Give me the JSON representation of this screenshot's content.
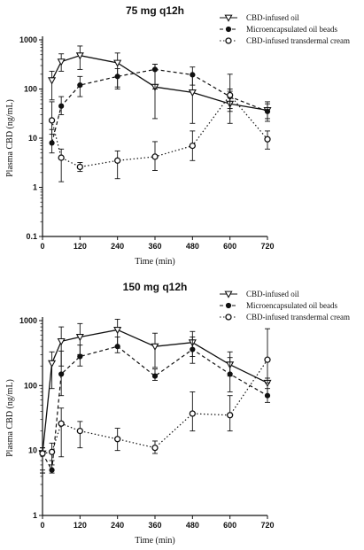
{
  "chart_data": [
    {
      "type": "line",
      "title": "75 mg q12h",
      "xlabel": "Time (min)",
      "ylabel": "Plasma CBD (ng/mL)",
      "yscale": "log",
      "ylim": [
        0.1,
        1000
      ],
      "xlim": [
        0,
        720
      ],
      "x_ticks": [
        "0",
        "120",
        "240",
        "360",
        "480",
        "600",
        "720"
      ],
      "y_ticks": [
        "0.1",
        "1",
        "10",
        "100",
        "1000"
      ],
      "legend_position": "top-right",
      "series": [
        {
          "name": "CBD-infused oil",
          "marker": "triangle-down-open",
          "line": "solid",
          "x": [
            30,
            60,
            120,
            240,
            360,
            480,
            600,
            720
          ],
          "y": [
            150,
            360,
            480,
            340,
            110,
            85,
            50,
            37
          ],
          "err_low": [
            60,
            230,
            250,
            110,
            25,
            20,
            20,
            22
          ],
          "err_high": [
            230,
            520,
            750,
            540,
            320,
            190,
            90,
            55
          ]
        },
        {
          "name": "Microencapsulated oil beads",
          "marker": "circle-filled",
          "line": "dashed",
          "x": [
            30,
            60,
            120,
            240,
            360,
            480,
            600,
            720
          ],
          "y": [
            8,
            45,
            120,
            180,
            250,
            195,
            70,
            35
          ],
          "err_low": [
            5,
            30,
            70,
            100,
            100,
            120,
            40,
            25
          ],
          "err_high": [
            15,
            70,
            180,
            260,
            320,
            280,
            100,
            50
          ]
        },
        {
          "name": "CBD-infused transdermal cream",
          "marker": "circle-open",
          "line": "dotted",
          "x": [
            30,
            60,
            120,
            240,
            360,
            480,
            600,
            720
          ],
          "y": [
            23,
            4,
            2.6,
            3.5,
            4.2,
            7,
            75,
            9.5
          ],
          "err_low": [
            12,
            1.3,
            2.1,
            1.5,
            2.2,
            3.5,
            35,
            6
          ],
          "err_high": [
            55,
            6,
            3.2,
            5.5,
            8.5,
            14,
            200,
            14
          ]
        }
      ]
    },
    {
      "type": "line",
      "title": "150 mg q12h",
      "xlabel": "Time (min)",
      "ylabel": "Plasma CBD (ng/mL)",
      "yscale": "log",
      "ylim": [
        1,
        1000
      ],
      "xlim": [
        0,
        720
      ],
      "x_ticks": [
        "0",
        "120",
        "240",
        "360",
        "480",
        "600",
        "720"
      ],
      "y_ticks": [
        "1",
        "10",
        "100",
        "1000"
      ],
      "legend_position": "top-right",
      "series": [
        {
          "name": "CBD-infused oil",
          "marker": "triangle-down-open",
          "line": "solid",
          "x": [
            0,
            30,
            60,
            120,
            240,
            360,
            480,
            600,
            720
          ],
          "y": [
            9,
            220,
            480,
            560,
            720,
            400,
            460,
            210,
            110
          ],
          "err_low": [
            4.5,
            90,
            200,
            300,
            400,
            190,
            280,
            140,
            70
          ],
          "err_high": [
            11,
            330,
            800,
            900,
            1050,
            640,
            680,
            330,
            130
          ]
        },
        {
          "name": "Microencapsulated oil beads",
          "marker": "circle-filled",
          "line": "dashed",
          "x": [
            0,
            30,
            60,
            120,
            240,
            360,
            480,
            600,
            720
          ],
          "y": [
            9,
            5,
            150,
            280,
            400,
            140,
            360,
            150,
            70
          ],
          "err_low": [
            5,
            4.5,
            70,
            200,
            320,
            120,
            220,
            80,
            55
          ],
          "err_high": [
            11,
            7,
            340,
            420,
            560,
            180,
            560,
            270,
            90
          ]
        },
        {
          "name": "CBD-infused transdermal cream",
          "marker": "circle-open",
          "line": "dotted",
          "x": [
            0,
            30,
            60,
            120,
            240,
            360,
            480,
            600,
            720
          ],
          "y": [
            9,
            9.5,
            26,
            20,
            15,
            11,
            37,
            35,
            250
          ],
          "err_low": [
            4.5,
            6,
            8,
            11,
            10,
            9,
            20,
            20,
            110
          ],
          "err_high": [
            11,
            13,
            45,
            28,
            22,
            14,
            80,
            70,
            750
          ]
        }
      ]
    }
  ]
}
